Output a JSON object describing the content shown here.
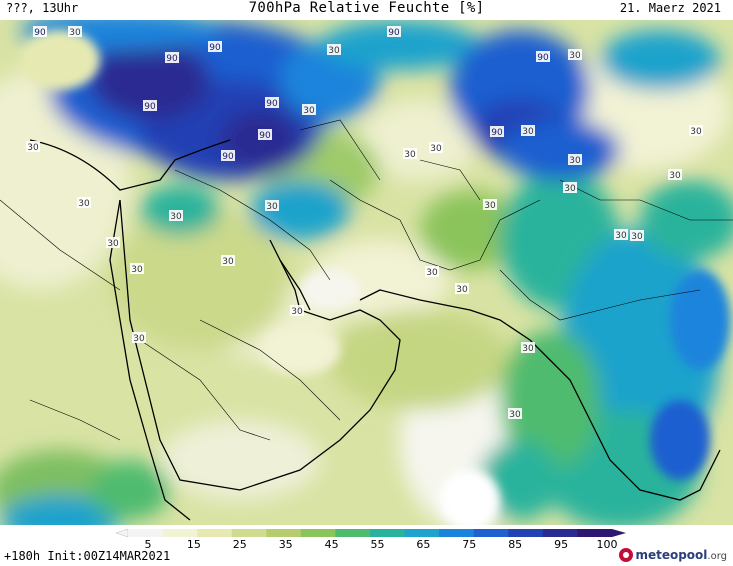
{
  "header": {
    "left": "???, 13Uhr",
    "title": "700hPa Relative Feuchte [%]",
    "date": "21. Maerz 2021"
  },
  "colorbar": {
    "labels": [
      "5",
      "15",
      "25",
      "35",
      "45",
      "55",
      "65",
      "75",
      "85",
      "95",
      "100"
    ],
    "colors": [
      "#f4f4f4",
      "#f2f2d4",
      "#e6eab2",
      "#cfdc90",
      "#b7cc6c",
      "#8cc45c",
      "#4fbb6e",
      "#29b39c",
      "#1ea3cc",
      "#1a84dc",
      "#1f5fd0",
      "#2441b4",
      "#2a2a92",
      "#2e1770"
    ]
  },
  "footer": {
    "init": "+180h Init:00Z14MAR2021",
    "brand_main": "meteopool",
    "brand_suffix": ".org"
  },
  "contour_labels": [
    {
      "text": "90"
    },
    {
      "text": "90"
    },
    {
      "text": "90"
    },
    {
      "text": "90"
    },
    {
      "text": "90"
    },
    {
      "text": "90"
    },
    {
      "text": "90"
    },
    {
      "text": "90"
    },
    {
      "text": "90"
    },
    {
      "text": "90"
    },
    {
      "text": "30"
    },
    {
      "text": "30"
    },
    {
      "text": "30"
    },
    {
      "text": "30"
    },
    {
      "text": "30"
    },
    {
      "text": "30"
    },
    {
      "text": "30"
    },
    {
      "text": "30"
    },
    {
      "text": "30"
    },
    {
      "text": "30"
    },
    {
      "text": "30"
    },
    {
      "text": "30"
    },
    {
      "text": "30"
    },
    {
      "text": "30"
    },
    {
      "text": "30"
    },
    {
      "text": "30"
    },
    {
      "text": "30"
    },
    {
      "text": "30"
    },
    {
      "text": "30"
    },
    {
      "text": "30"
    },
    {
      "text": "30"
    },
    {
      "text": "30"
    },
    {
      "text": "30"
    },
    {
      "text": "30"
    },
    {
      "text": "30"
    },
    {
      "text": "30"
    },
    {
      "text": "30"
    }
  ]
}
